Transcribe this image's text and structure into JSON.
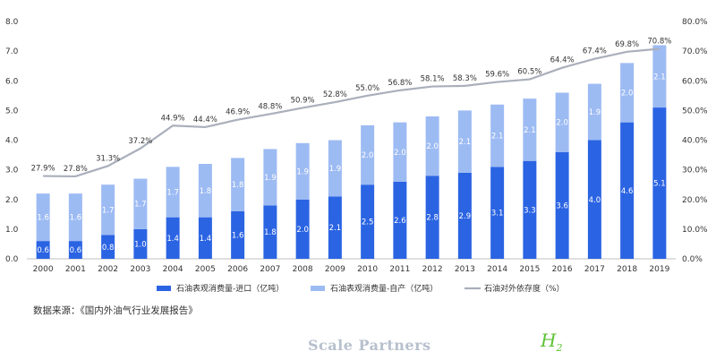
{
  "chart_data": {
    "type": "bar",
    "categories": [
      "2000",
      "2001",
      "2002",
      "2003",
      "2004",
      "2005",
      "2006",
      "2007",
      "2008",
      "2009",
      "2010",
      "2011",
      "2012",
      "2013",
      "2014",
      "2015",
      "2016",
      "2017",
      "2018",
      "2019"
    ],
    "series": [
      {
        "name": "石油表观消费量-进口（亿吨）",
        "type": "bar",
        "axis": "left",
        "stack": "total",
        "color": "#2b64e3",
        "values": [
          0.6,
          0.6,
          0.8,
          1.0,
          1.4,
          1.4,
          1.6,
          1.8,
          2.0,
          2.1,
          2.5,
          2.6,
          2.8,
          2.9,
          3.1,
          3.3,
          3.6,
          4.0,
          4.6,
          5.1
        ],
        "labels": [
          "0.6",
          "0.6",
          "0.8",
          "1.0",
          "1.4",
          "1.4",
          "1.6",
          "1.8",
          "2.0",
          "2.1",
          "2.5",
          "2.6",
          "2.8",
          "2.9",
          "3.1",
          "3.3",
          "3.6",
          "4.0",
          "4.6",
          "5.1"
        ]
      },
      {
        "name": "石油表观消费量-自产（亿吨）",
        "type": "bar",
        "axis": "left",
        "stack": "total",
        "color": "#9dbbf3",
        "values": [
          1.6,
          1.6,
          1.7,
          1.7,
          1.7,
          1.8,
          1.8,
          1.9,
          1.9,
          1.9,
          2.0,
          2.0,
          2.0,
          2.1,
          2.1,
          2.1,
          2.0,
          1.9,
          2.0,
          2.1
        ],
        "labels": [
          "1.6",
          "1.6",
          "1.7",
          "1.7",
          "1.7",
          "1.8",
          "1.8",
          "1.9",
          "1.9",
          "1.9",
          "2.0",
          "2.0",
          "2.0",
          "2.1",
          "2.1",
          "2.1",
          "2.0",
          "1.9",
          "2.0",
          "2.1"
        ]
      },
      {
        "name": "石油对外依存度（%）",
        "type": "line",
        "axis": "right",
        "color": "#a9afbb",
        "values": [
          27.9,
          27.8,
          31.3,
          37.2,
          44.9,
          44.4,
          46.9,
          48.8,
          50.9,
          52.8,
          55.0,
          56.8,
          58.1,
          58.3,
          59.6,
          60.5,
          64.4,
          67.4,
          69.8,
          70.8
        ],
        "labels": [
          "27.9%",
          "27.8%",
          "31.3%",
          "37.2%",
          "44.9%",
          "44.4%",
          "46.9%",
          "48.8%",
          "50.9%",
          "52.8%",
          "55.0%",
          "56.8%",
          "58.1%",
          "58.3%",
          "59.6%",
          "60.5%",
          "64.4%",
          "67.4%",
          "69.8%",
          "70.8%"
        ]
      }
    ],
    "left_axis": {
      "ylim": [
        0,
        8
      ],
      "ticks": [
        "0.0",
        "1.0",
        "2.0",
        "3.0",
        "4.0",
        "5.0",
        "6.0",
        "7.0",
        "8.0"
      ]
    },
    "right_axis": {
      "ylim": [
        0,
        80
      ],
      "ticks": [
        "0.0%",
        "10.0%",
        "20.0%",
        "30.0%",
        "40.0%",
        "50.0%",
        "60.0%",
        "70.0%",
        "80.0%"
      ]
    },
    "grid": false,
    "legend_position": "bottom"
  },
  "source_note": "数据来源：《国内外油气行业发展报告》",
  "watermark": {
    "text": "Scale Partners"
  },
  "logo": {
    "main": "H",
    "sub": "2",
    "color": "#5cc233"
  }
}
